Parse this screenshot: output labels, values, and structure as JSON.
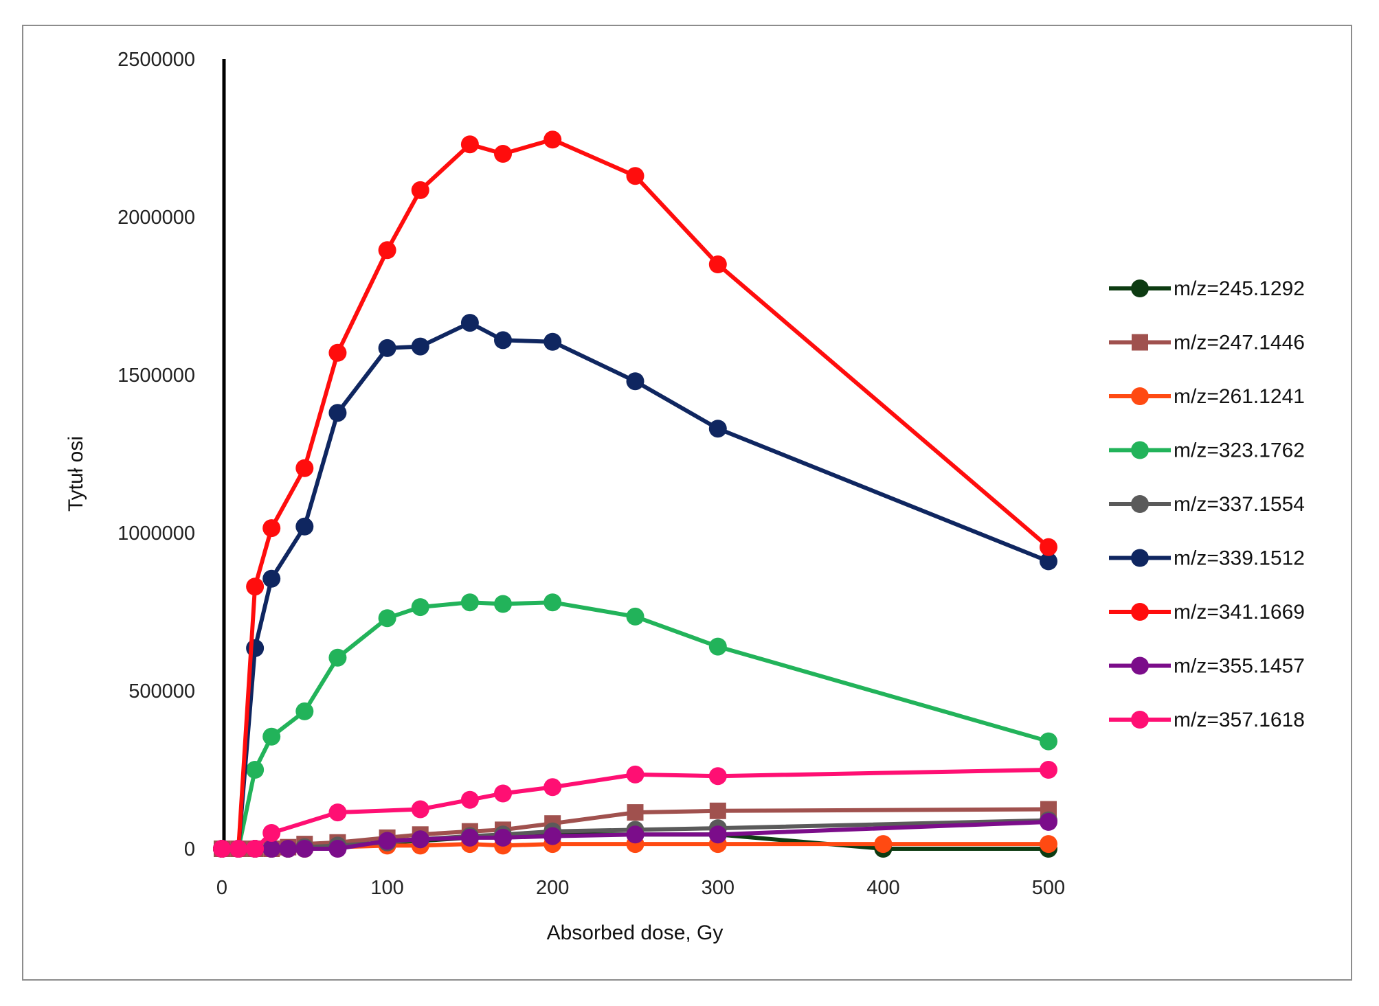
{
  "chart_data": {
    "type": "line",
    "title": "",
    "xlabel": "Absorbed dose, Gy",
    "ylabel": "Tytuł osi",
    "xlim": [
      0,
      500
    ],
    "ylim": [
      0,
      2500000
    ],
    "xticks": [
      0,
      100,
      200,
      300,
      400,
      500
    ],
    "yticks": [
      0,
      500000,
      1000000,
      1500000,
      2000000,
      2500000
    ],
    "legend_position": "right",
    "grid": false,
    "series": [
      {
        "name": "m/z=245.1292",
        "color": "#0d3b12",
        "marker": "circle",
        "x": [
          0,
          10,
          20,
          30,
          40,
          50,
          70,
          100,
          120,
          150,
          170,
          200,
          250,
          300,
          400,
          500
        ],
        "y": [
          0,
          0,
          0,
          0,
          0,
          0,
          10000,
          20000,
          25000,
          35000,
          40000,
          45000,
          45000,
          45000,
          0,
          0
        ]
      },
      {
        "name": "m/z=247.1446",
        "color": "#a0514e",
        "marker": "square",
        "x": [
          0,
          10,
          20,
          30,
          40,
          50,
          70,
          100,
          120,
          150,
          170,
          200,
          250,
          300,
          500
        ],
        "y": [
          0,
          0,
          0,
          0,
          5000,
          15000,
          20000,
          35000,
          45000,
          55000,
          60000,
          80000,
          115000,
          120000,
          125000
        ]
      },
      {
        "name": "m/z=261.1241",
        "color": "#ff4a12",
        "marker": "circle",
        "x": [
          0,
          10,
          20,
          30,
          40,
          50,
          70,
          100,
          120,
          150,
          170,
          200,
          250,
          300,
          400,
          500
        ],
        "y": [
          0,
          0,
          0,
          0,
          0,
          0,
          5000,
          10000,
          10000,
          15000,
          10000,
          15000,
          15000,
          15000,
          15000,
          15000
        ]
      },
      {
        "name": "m/z=323.1762",
        "color": "#22b35a",
        "marker": "circle",
        "x": [
          0,
          10,
          20,
          30,
          50,
          70,
          100,
          120,
          150,
          170,
          200,
          250,
          300,
          500
        ],
        "y": [
          0,
          0,
          250000,
          355000,
          435000,
          605000,
          730000,
          765000,
          780000,
          775000,
          780000,
          735000,
          640000,
          340000
        ]
      },
      {
        "name": "m/z=337.1554",
        "color": "#5a5a5a",
        "marker": "circle",
        "x": [
          0,
          10,
          20,
          30,
          40,
          50,
          70,
          100,
          120,
          150,
          170,
          200,
          250,
          300,
          500
        ],
        "y": [
          0,
          0,
          0,
          0,
          0,
          5000,
          10000,
          20000,
          30000,
          40000,
          45000,
          55000,
          60000,
          65000,
          90000
        ]
      },
      {
        "name": "m/z=339.1512",
        "color": "#0f2660",
        "marker": "circle",
        "x": [
          0,
          10,
          20,
          30,
          50,
          70,
          100,
          120,
          150,
          170,
          200,
          250,
          300,
          500
        ],
        "y": [
          0,
          0,
          635000,
          855000,
          1020000,
          1380000,
          1585000,
          1590000,
          1665000,
          1610000,
          1605000,
          1480000,
          1330000,
          910000
        ]
      },
      {
        "name": "m/z=341.1669",
        "color": "#ff0d0d",
        "marker": "circle",
        "x": [
          0,
          10,
          20,
          30,
          50,
          70,
          100,
          120,
          150,
          170,
          200,
          250,
          300,
          500
        ],
        "y": [
          0,
          0,
          830000,
          1015000,
          1205000,
          1570000,
          1895000,
          2085000,
          2230000,
          2200000,
          2245000,
          2130000,
          1850000,
          955000
        ]
      },
      {
        "name": "m/z=355.1457",
        "color": "#7b0d8a",
        "marker": "circle",
        "x": [
          0,
          10,
          20,
          30,
          40,
          50,
          70,
          100,
          120,
          150,
          170,
          200,
          250,
          300,
          500
        ],
        "y": [
          0,
          0,
          0,
          0,
          0,
          0,
          0,
          25000,
          30000,
          35000,
          35000,
          40000,
          45000,
          45000,
          85000
        ]
      },
      {
        "name": "m/z=357.1618",
        "color": "#ff0f73",
        "marker": "circle",
        "x": [
          0,
          10,
          20,
          30,
          70,
          120,
          150,
          170,
          200,
          250,
          300,
          500
        ],
        "y": [
          0,
          0,
          0,
          50000,
          115000,
          125000,
          155000,
          175000,
          195000,
          235000,
          230000,
          250000
        ]
      }
    ]
  }
}
